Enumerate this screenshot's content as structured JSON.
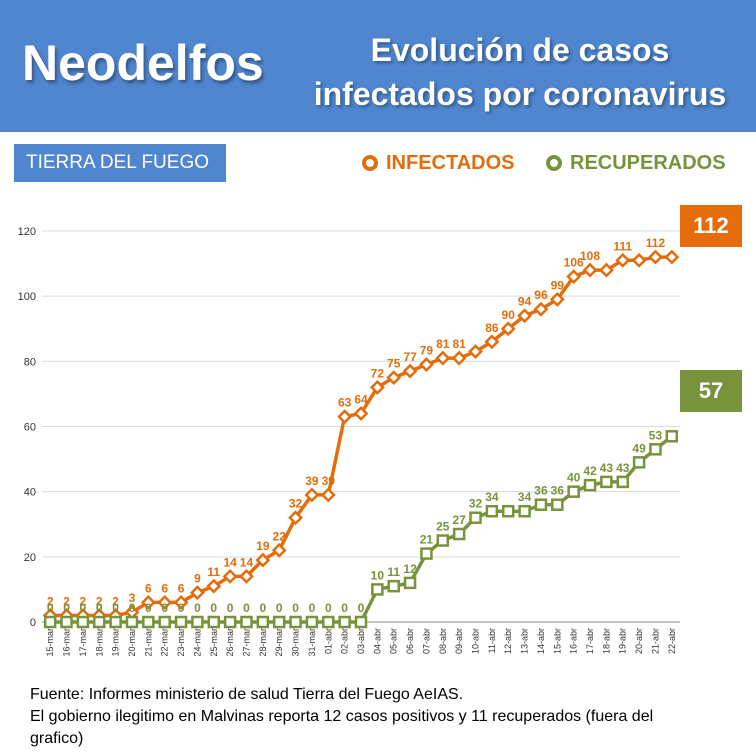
{
  "header": {
    "brand": "Neodelfos",
    "title_line1": "Evolución de casos",
    "title_line2": "infectados por coronavirus"
  },
  "region_label": "TIERRA DEL FUEGO",
  "legend": {
    "infected": "INFECTADOS",
    "recovered": "RECUPERADOS"
  },
  "callouts": {
    "infected": "112",
    "recovered": "57"
  },
  "footer": {
    "line1": "Fuente: Informes ministerio de salud Tierra del Fuego AeIAS.",
    "line2": "El gobierno ilegitimo  en Malvinas reporta 12 casos positivos y 11 recuperados (fuera del",
    "line3": "grafico)"
  },
  "colors": {
    "infected": "#e46c0a",
    "recovered": "#77933c",
    "header": "#4f86cf"
  },
  "chart_data": {
    "type": "line",
    "ylim": [
      0,
      120
    ],
    "yticks": [
      0,
      20,
      40,
      60,
      80,
      100,
      120
    ],
    "grid": true,
    "legend_position": "top-right",
    "categories": [
      "15-mar",
      "16-mar",
      "17-mar",
      "18-mar",
      "19-mar",
      "20-mar",
      "21-mar",
      "22-mar",
      "23-mar",
      "24-mar",
      "25-mar",
      "26-mar",
      "27-mar",
      "28-mar",
      "29-mar",
      "30-mar",
      "31-mar",
      "01-abr",
      "02-abr",
      "03-abr",
      "04-abr",
      "05-abr",
      "06-abr",
      "07-abr",
      "08-abr",
      "09-abr",
      "10-abr",
      "11-abr",
      "12-abr",
      "13-abr",
      "14-abr",
      "15-abr",
      "16-abr",
      "17-abr",
      "18-abr",
      "19-abr",
      "20-abr",
      "21-abr",
      "22-abr"
    ],
    "series": [
      {
        "name": "INFECTADOS",
        "color": "#e46c0a",
        "values": [
          2,
          2,
          2,
          2,
          2,
          3,
          6,
          6,
          6,
          9,
          11,
          14,
          14,
          19,
          22,
          32,
          39,
          39,
          63,
          64,
          72,
          75,
          77,
          79,
          81,
          81,
          83,
          86,
          90,
          94,
          96,
          99,
          106,
          108,
          108,
          111,
          111,
          112,
          112
        ],
        "labeled": [
          true,
          true,
          true,
          true,
          true,
          true,
          true,
          true,
          true,
          true,
          true,
          true,
          true,
          true,
          true,
          true,
          true,
          true,
          true,
          true,
          true,
          true,
          true,
          true,
          true,
          true,
          false,
          true,
          true,
          true,
          true,
          true,
          true,
          true,
          false,
          true,
          false,
          true,
          false
        ]
      },
      {
        "name": "RECUPERADOS",
        "color": "#77933c",
        "values": [
          0,
          0,
          0,
          0,
          0,
          0,
          0,
          0,
          0,
          0,
          0,
          0,
          0,
          0,
          0,
          0,
          0,
          0,
          0,
          0,
          10,
          11,
          12,
          21,
          25,
          27,
          32,
          34,
          34,
          34,
          36,
          36,
          40,
          42,
          43,
          43,
          49,
          53,
          57
        ],
        "labeled": [
          true,
          true,
          true,
          true,
          true,
          true,
          true,
          true,
          true,
          true,
          true,
          true,
          true,
          true,
          true,
          true,
          true,
          true,
          true,
          true,
          true,
          true,
          true,
          true,
          true,
          true,
          true,
          true,
          false,
          true,
          true,
          true,
          true,
          true,
          true,
          true,
          true,
          true,
          false
        ]
      }
    ]
  }
}
